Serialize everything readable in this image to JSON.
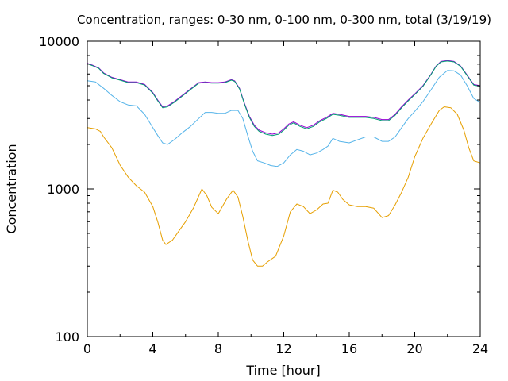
{
  "chart_data": {
    "type": "line",
    "title": "Concentration, ranges: 0-30 nm, 0-100 nm, 0-300 nm, total (3/19/19)",
    "xlabel": "Time [hour]",
    "ylabel": "Concentration",
    "xlim": [
      0,
      24
    ],
    "ylim": [
      100,
      10000
    ],
    "yscale": "log",
    "grid": false,
    "x_ticks": [
      0,
      4,
      8,
      12,
      16,
      20,
      24
    ],
    "x_tick_labels": [
      "0",
      "4",
      "8",
      "12",
      "16",
      "20",
      "24"
    ],
    "y_ticks": [
      100,
      1000,
      10000
    ],
    "y_tick_labels": [
      "100",
      "1000",
      "10000"
    ],
    "series": [
      {
        "color": "#e69f00",
        "x": [
          0,
          0.5,
          0.8,
          1.0,
          1.5,
          2.0,
          2.5,
          3.0,
          3.5,
          4.0,
          4.3,
          4.6,
          4.8,
          5.2,
          5.6,
          6.0,
          6.5,
          7.0,
          7.3,
          7.6,
          8.0,
          8.5,
          8.9,
          9.2,
          9.5,
          9.8,
          10.1,
          10.4,
          10.7,
          11.0,
          11.5,
          12.0,
          12.4,
          12.8,
          13.2,
          13.6,
          14.0,
          14.4,
          14.7,
          15.0,
          15.3,
          15.6,
          16.0,
          16.5,
          17.0,
          17.5,
          18.0,
          18.4,
          18.8,
          19.2,
          19.6,
          20.0,
          20.5,
          21.0,
          21.5,
          21.8,
          22.2,
          22.6,
          23.0,
          23.3,
          23.6,
          24.0
        ],
        "values": [
          2600,
          2550,
          2450,
          2250,
          1900,
          1450,
          1200,
          1050,
          950,
          760,
          600,
          450,
          420,
          450,
          520,
          600,
          750,
          1000,
          900,
          750,
          680,
          850,
          980,
          880,
          650,
          450,
          330,
          300,
          300,
          320,
          350,
          480,
          700,
          790,
          760,
          680,
          720,
          790,
          800,
          980,
          950,
          850,
          780,
          760,
          760,
          740,
          640,
          660,
          780,
          950,
          1200,
          1650,
          2200,
          2750,
          3400,
          3600,
          3550,
          3200,
          2500,
          1900,
          1550,
          1500
        ]
      },
      {
        "color": "#56b4e9",
        "x": [
          0,
          0.5,
          1.0,
          1.5,
          2.0,
          2.5,
          3.0,
          3.5,
          4.0,
          4.3,
          4.6,
          4.9,
          5.3,
          5.8,
          6.3,
          6.8,
          7.2,
          7.6,
          8.0,
          8.4,
          8.8,
          9.2,
          9.5,
          9.8,
          10.1,
          10.4,
          10.8,
          11.2,
          11.6,
          12.0,
          12.4,
          12.8,
          13.2,
          13.6,
          14.0,
          14.4,
          14.7,
          15.0,
          15.4,
          16.0,
          16.5,
          17.0,
          17.5,
          18.0,
          18.4,
          18.8,
          19.2,
          19.6,
          20.0,
          20.5,
          21.0,
          21.5,
          22.0,
          22.4,
          22.8,
          23.2,
          23.6,
          24.0
        ],
        "values": [
          5400,
          5300,
          4800,
          4300,
          3900,
          3700,
          3650,
          3200,
          2600,
          2300,
          2050,
          2000,
          2150,
          2400,
          2650,
          3000,
          3300,
          3300,
          3250,
          3250,
          3400,
          3400,
          3000,
          2300,
          1800,
          1550,
          1500,
          1440,
          1420,
          1500,
          1700,
          1850,
          1800,
          1700,
          1750,
          1850,
          1950,
          2200,
          2100,
          2050,
          2150,
          2250,
          2250,
          2100,
          2100,
          2250,
          2600,
          3000,
          3350,
          3900,
          4700,
          5700,
          6350,
          6300,
          5900,
          5000,
          4100,
          3850
        ]
      },
      {
        "color": "#9400d3",
        "x": [
          0,
          0.3,
          0.7,
          1.0,
          1.5,
          2.0,
          2.5,
          3.0,
          3.5,
          4.0,
          4.3,
          4.6,
          4.9,
          5.3,
          5.8,
          6.3,
          6.8,
          7.2,
          7.6,
          8.0,
          8.4,
          8.8,
          9.0,
          9.3,
          9.6,
          9.9,
          10.2,
          10.5,
          10.9,
          11.3,
          11.7,
          12.0,
          12.3,
          12.6,
          13.0,
          13.4,
          13.8,
          14.2,
          14.6,
          15.0,
          15.4,
          16.0,
          16.5,
          17.0,
          17.5,
          18.0,
          18.4,
          18.8,
          19.2,
          19.6,
          20.0,
          20.5,
          21.0,
          21.3,
          21.6,
          22.0,
          22.4,
          22.8,
          23.2,
          23.6,
          24.0
        ],
        "values": [
          7100,
          6900,
          6600,
          6100,
          5700,
          5500,
          5300,
          5300,
          5100,
          4500,
          4000,
          3600,
          3650,
          3900,
          4300,
          4750,
          5250,
          5300,
          5250,
          5250,
          5300,
          5500,
          5400,
          4800,
          3800,
          3100,
          2700,
          2500,
          2400,
          2350,
          2400,
          2550,
          2750,
          2850,
          2700,
          2600,
          2700,
          2900,
          3050,
          3250,
          3200,
          3100,
          3100,
          3100,
          3050,
          2950,
          2950,
          3200,
          3600,
          4000,
          4400,
          5000,
          6000,
          6800,
          7300,
          7400,
          7300,
          6800,
          5900,
          5100,
          5000
        ]
      },
      {
        "color": "#009e73",
        "x": [
          0,
          0.3,
          0.7,
          1.0,
          1.5,
          2.0,
          2.5,
          3.0,
          3.5,
          4.0,
          4.3,
          4.6,
          4.9,
          5.3,
          5.8,
          6.3,
          6.8,
          7.2,
          7.6,
          8.0,
          8.4,
          8.8,
          9.0,
          9.3,
          9.6,
          9.9,
          10.2,
          10.5,
          10.9,
          11.3,
          11.7,
          12.0,
          12.3,
          12.6,
          13.0,
          13.4,
          13.8,
          14.2,
          14.6,
          15.0,
          15.4,
          16.0,
          16.5,
          17.0,
          17.5,
          18.0,
          18.4,
          18.8,
          19.2,
          19.6,
          20.0,
          20.5,
          21.0,
          21.3,
          21.6,
          22.0,
          22.4,
          22.8,
          23.2,
          23.6,
          24.0
        ],
        "values": [
          7050,
          6850,
          6550,
          6050,
          5650,
          5450,
          5250,
          5250,
          5050,
          4450,
          3950,
          3550,
          3600,
          3850,
          4250,
          4700,
          5200,
          5250,
          5200,
          5200,
          5250,
          5450,
          5350,
          4750,
          3750,
          3050,
          2650,
          2450,
          2350,
          2300,
          2350,
          2500,
          2700,
          2800,
          2650,
          2550,
          2650,
          2850,
          3000,
          3200,
          3150,
          3050,
          3050,
          3050,
          3000,
          2900,
          2900,
          3150,
          3550,
          3950,
          4350,
          4950,
          5950,
          6750,
          7250,
          7350,
          7250,
          6750,
          5850,
          5050,
          4950
        ]
      }
    ]
  }
}
